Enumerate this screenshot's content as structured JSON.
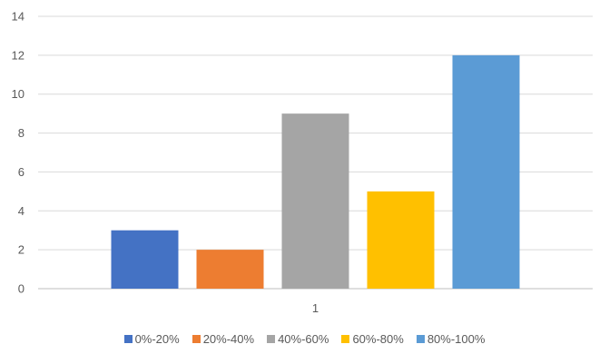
{
  "chart_data": {
    "type": "bar",
    "categories": [
      "1"
    ],
    "series": [
      {
        "name": "0%-20%",
        "values": [
          3
        ],
        "color": "#4472C4"
      },
      {
        "name": "20%-40%",
        "values": [
          2
        ],
        "color": "#ED7D31"
      },
      {
        "name": "40%-60%",
        "values": [
          9
        ],
        "color": "#A5A5A5"
      },
      {
        "name": "60%-80%",
        "values": [
          5
        ],
        "color": "#FFC000"
      },
      {
        "name": "80%-100%",
        "values": [
          12
        ],
        "color": "#5B9BD5"
      }
    ],
    "title": "",
    "xlabel": "",
    "ylabel": "",
    "ylim": [
      0,
      14
    ],
    "yticks": [
      "0",
      "2",
      "4",
      "6",
      "8",
      "10",
      "12",
      "14"
    ],
    "grid": true,
    "legend_position": "bottom"
  }
}
